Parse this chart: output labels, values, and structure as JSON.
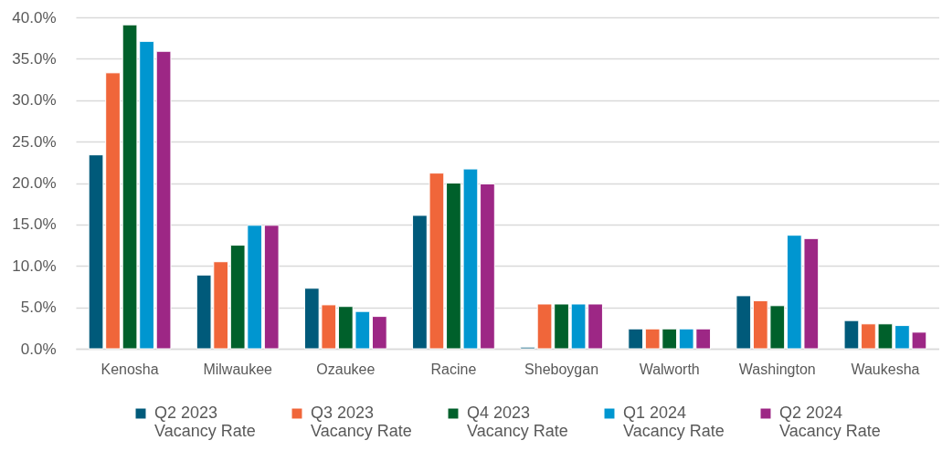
{
  "chart_data": {
    "type": "bar",
    "categories": [
      "Kenosha",
      "Milwaukee",
      "Ozaukee",
      "Racine",
      "Sheboygan",
      "Walworth",
      "Washington",
      "Waukesha"
    ],
    "series": [
      {
        "name": "Q2 2023 Vacancy Rate",
        "color": "#005a7a",
        "values": [
          23.4,
          8.9,
          7.3,
          16.1,
          0.2,
          2.4,
          6.4,
          3.4
        ]
      },
      {
        "name": "Q3 2023 Vacancy Rate",
        "color": "#f0663a",
        "values": [
          33.3,
          10.5,
          5.3,
          21.2,
          5.4,
          2.4,
          5.8,
          3.0
        ]
      },
      {
        "name": "Q4 2023 Vacancy Rate",
        "color": "#00602b",
        "values": [
          39.1,
          12.5,
          5.1,
          20.0,
          5.4,
          2.4,
          5.2,
          3.0
        ]
      },
      {
        "name": "Q1 2024 Vacancy Rate",
        "color": "#0096d0",
        "values": [
          37.1,
          14.9,
          4.5,
          21.7,
          5.4,
          2.4,
          13.7,
          2.8
        ]
      },
      {
        "name": "Q2 2024 Vacancy Rate",
        "color": "#9d2785",
        "values": [
          35.9,
          14.9,
          3.9,
          19.9,
          5.4,
          2.4,
          13.3,
          2.0
        ]
      }
    ],
    "ylim": [
      0,
      40
    ],
    "yticks": [
      {
        "value": 0,
        "label": "0.0%"
      },
      {
        "value": 5,
        "label": "5.0%"
      },
      {
        "value": 10,
        "label": "10.0%"
      },
      {
        "value": 15,
        "label": "15.0%"
      },
      {
        "value": 20,
        "label": "20.0%"
      },
      {
        "value": 25,
        "label": "25.0%"
      },
      {
        "value": 30,
        "label": "30.0%"
      },
      {
        "value": 35,
        "label": "35.0%"
      },
      {
        "value": 40,
        "label": "40.0%"
      }
    ],
    "grid": "y",
    "legend": "bottom"
  }
}
